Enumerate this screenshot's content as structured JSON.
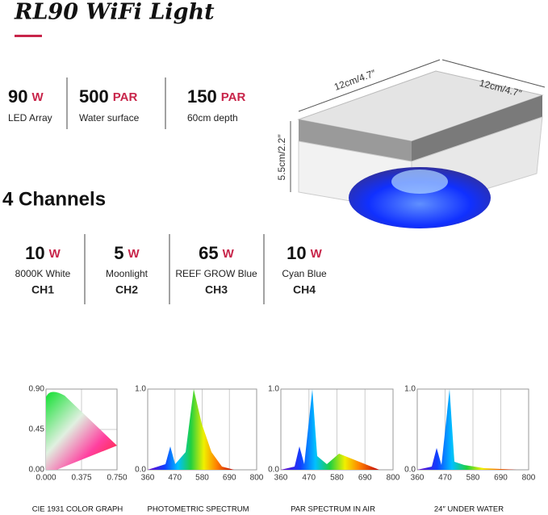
{
  "title": "RL90 WiFi Light",
  "specs": [
    {
      "value": "90",
      "unit": "W",
      "label": "LED Array"
    },
    {
      "value": "500",
      "unit": "PAR",
      "label": "Water surface"
    },
    {
      "value": "150",
      "unit": "PAR",
      "label": "60cm depth"
    }
  ],
  "channels_title": "4 Channels",
  "channels": [
    {
      "value": "10",
      "unit": "W",
      "label": "8000K White",
      "name": "CH1"
    },
    {
      "value": "5",
      "unit": "W",
      "label": "Moonlight",
      "name": "CH2"
    },
    {
      "value": "65",
      "unit": "W",
      "label": "REEF GROW Blue",
      "name": "CH3"
    },
    {
      "value": "10",
      "unit": "W",
      "label": "Cyan Blue",
      "name": "CH4"
    }
  ],
  "dimensions": {
    "width": "12cm/4.7″",
    "depth": "12cm/4.7″",
    "height": "5.5cm/2.2″"
  },
  "graphs": [
    {
      "caption": "CIE 1931 COLOR GRAPH",
      "yticks": [
        "0.90",
        "0.45",
        "0.00"
      ],
      "xticks": [
        "0.000",
        "0.375",
        "0.750"
      ]
    },
    {
      "caption": "PHOTOMETRIC SPECTRUM",
      "yticks": [
        "1.0",
        "0.0"
      ],
      "xticks": [
        "360",
        "470",
        "580",
        "690",
        "800"
      ]
    },
    {
      "caption": "PAR SPECTRUM IN AIR",
      "yticks": [
        "1.0",
        "0.0"
      ],
      "xticks": [
        "360",
        "470",
        "580",
        "690",
        "800"
      ]
    },
    {
      "caption": "24″ UNDER WATER",
      "yticks": [
        "1.0",
        "0.0"
      ],
      "xticks": [
        "360",
        "470",
        "580",
        "690",
        "800"
      ]
    }
  ]
}
